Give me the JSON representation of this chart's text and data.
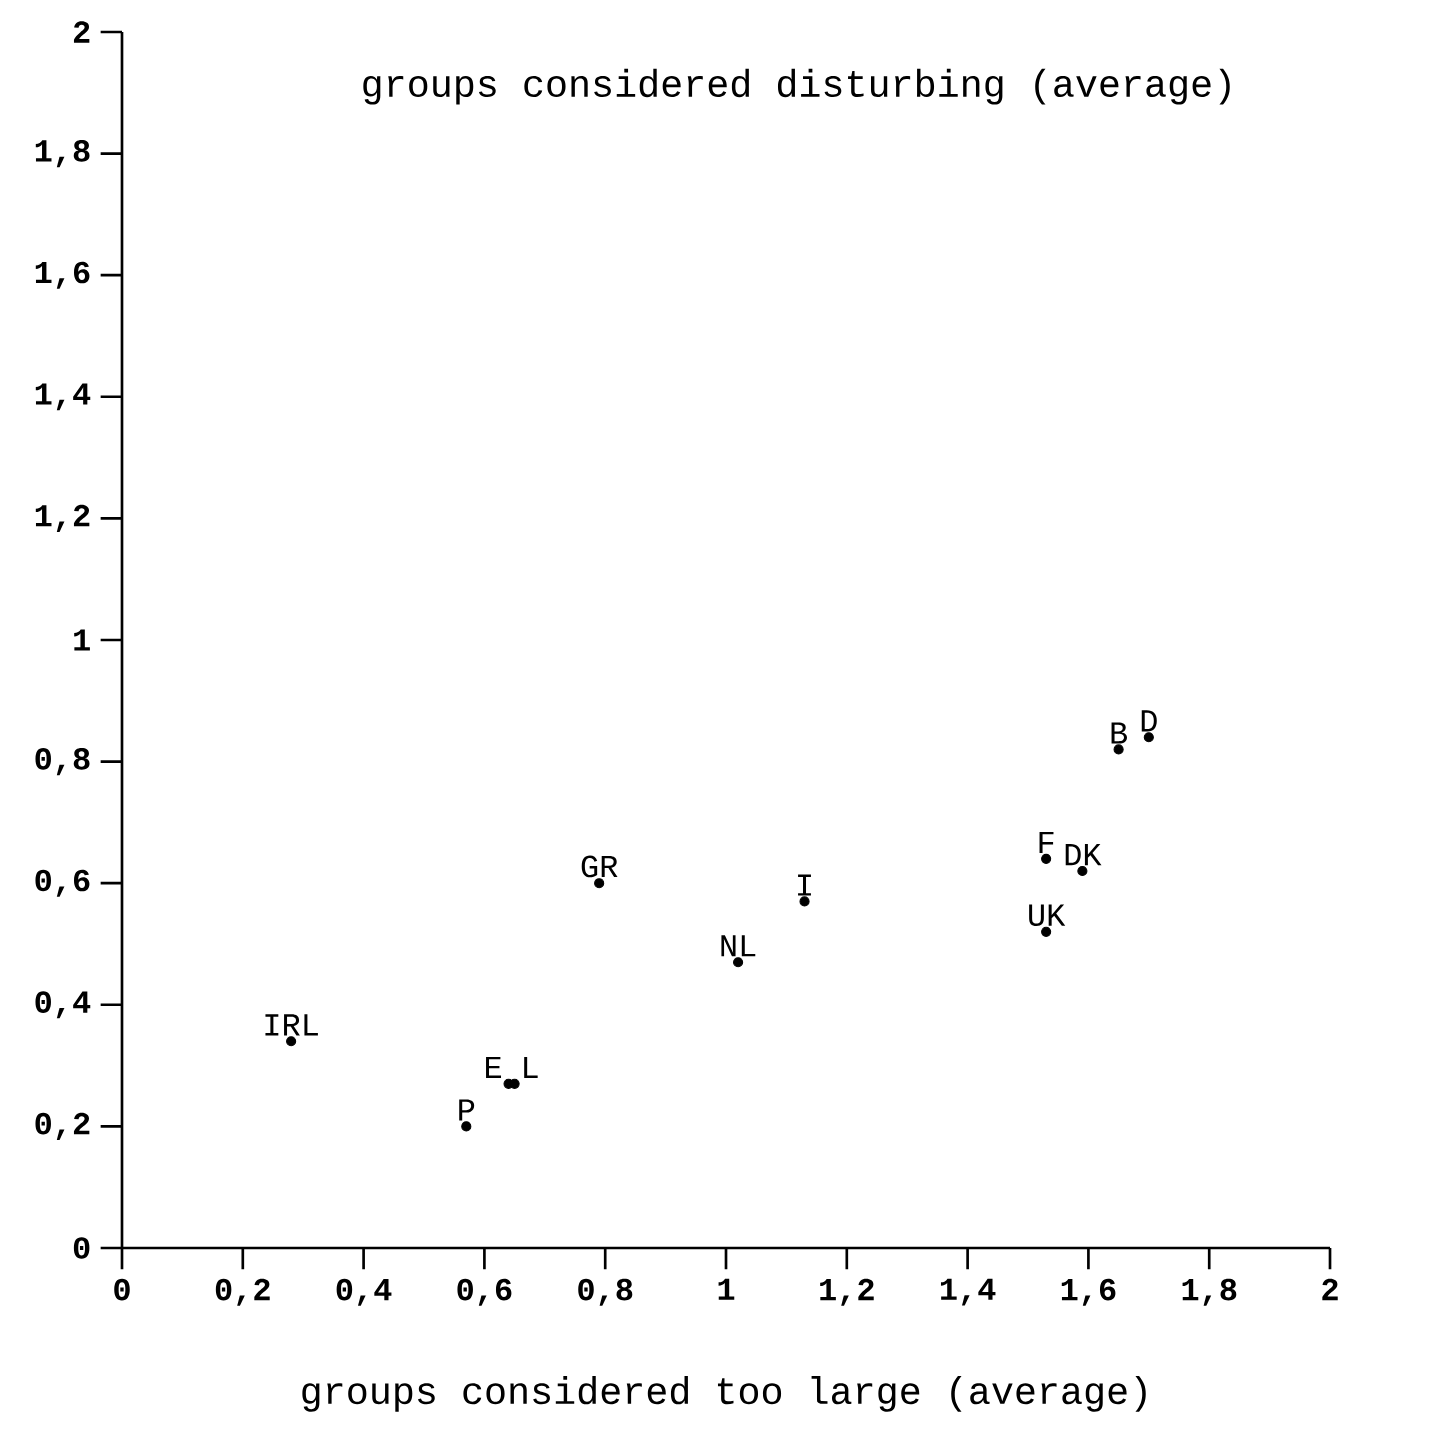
{
  "chart_data": {
    "type": "scatter",
    "xlabel": "groups considered too large (average)",
    "ylabel": "groups considered disturbing (average)",
    "x": [
      0.28,
      0.57,
      0.64,
      0.65,
      0.79,
      1.02,
      1.13,
      1.53,
      1.59,
      1.53,
      1.65,
      1.7
    ],
    "series": [
      {
        "color": "#000000",
        "values": [
          0.34,
          0.2,
          0.27,
          0.27,
          0.6,
          0.47,
          0.57,
          0.64,
          0.62,
          0.52,
          0.82,
          0.84
        ]
      }
    ],
    "annotations": [
      {
        "text": "IRL",
        "x": 0.28,
        "y": 0.34
      },
      {
        "text": "P",
        "x": 0.57,
        "y": 0.2
      },
      {
        "text": "E",
        "x": 0.64,
        "y": 0.27
      },
      {
        "text": "L",
        "x": 0.65,
        "y": 0.27
      },
      {
        "text": "GR",
        "x": 0.79,
        "y": 0.6
      },
      {
        "text": "NL",
        "x": 1.02,
        "y": 0.47
      },
      {
        "text": "I",
        "x": 1.13,
        "y": 0.57
      },
      {
        "text": "F",
        "x": 1.53,
        "y": 0.64
      },
      {
        "text": "DK",
        "x": 1.59,
        "y": 0.62
      },
      {
        "text": "UK",
        "x": 1.53,
        "y": 0.52
      },
      {
        "text": "B",
        "x": 1.65,
        "y": 0.82
      },
      {
        "text": "D",
        "x": 1.7,
        "y": 0.84
      }
    ],
    "xlim": [
      0,
      2
    ],
    "ylim": [
      0,
      2
    ],
    "xticks": [
      0,
      {
        "value": 0.2,
        "label": "0,2"
      },
      {
        "value": 0.4,
        "label": "0,4"
      },
      {
        "value": 0.6,
        "label": "0,6"
      },
      {
        "value": 0.8,
        "label": "0,8"
      },
      1,
      {
        "value": 1.2,
        "label": "1,2"
      },
      {
        "value": 1.4,
        "label": "1,4"
      },
      {
        "value": 1.6,
        "label": "1,6"
      },
      {
        "value": 1.8,
        "label": "1,8"
      },
      2
    ],
    "yticks": [
      0,
      {
        "value": 0.2,
        "label": "0,2"
      },
      {
        "value": 0.4,
        "label": "0,4"
      },
      {
        "value": 0.6,
        "label": "0,6"
      },
      {
        "value": 0.8,
        "label": "0,8"
      },
      1,
      {
        "value": 1.2,
        "label": "1,2"
      },
      {
        "value": 1.4,
        "label": "1,4"
      },
      {
        "value": 1.6,
        "label": "1,6"
      },
      {
        "value": 1.8,
        "label": "1,8"
      },
      2
    ],
    "marker": "circle",
    "grid": false
  }
}
